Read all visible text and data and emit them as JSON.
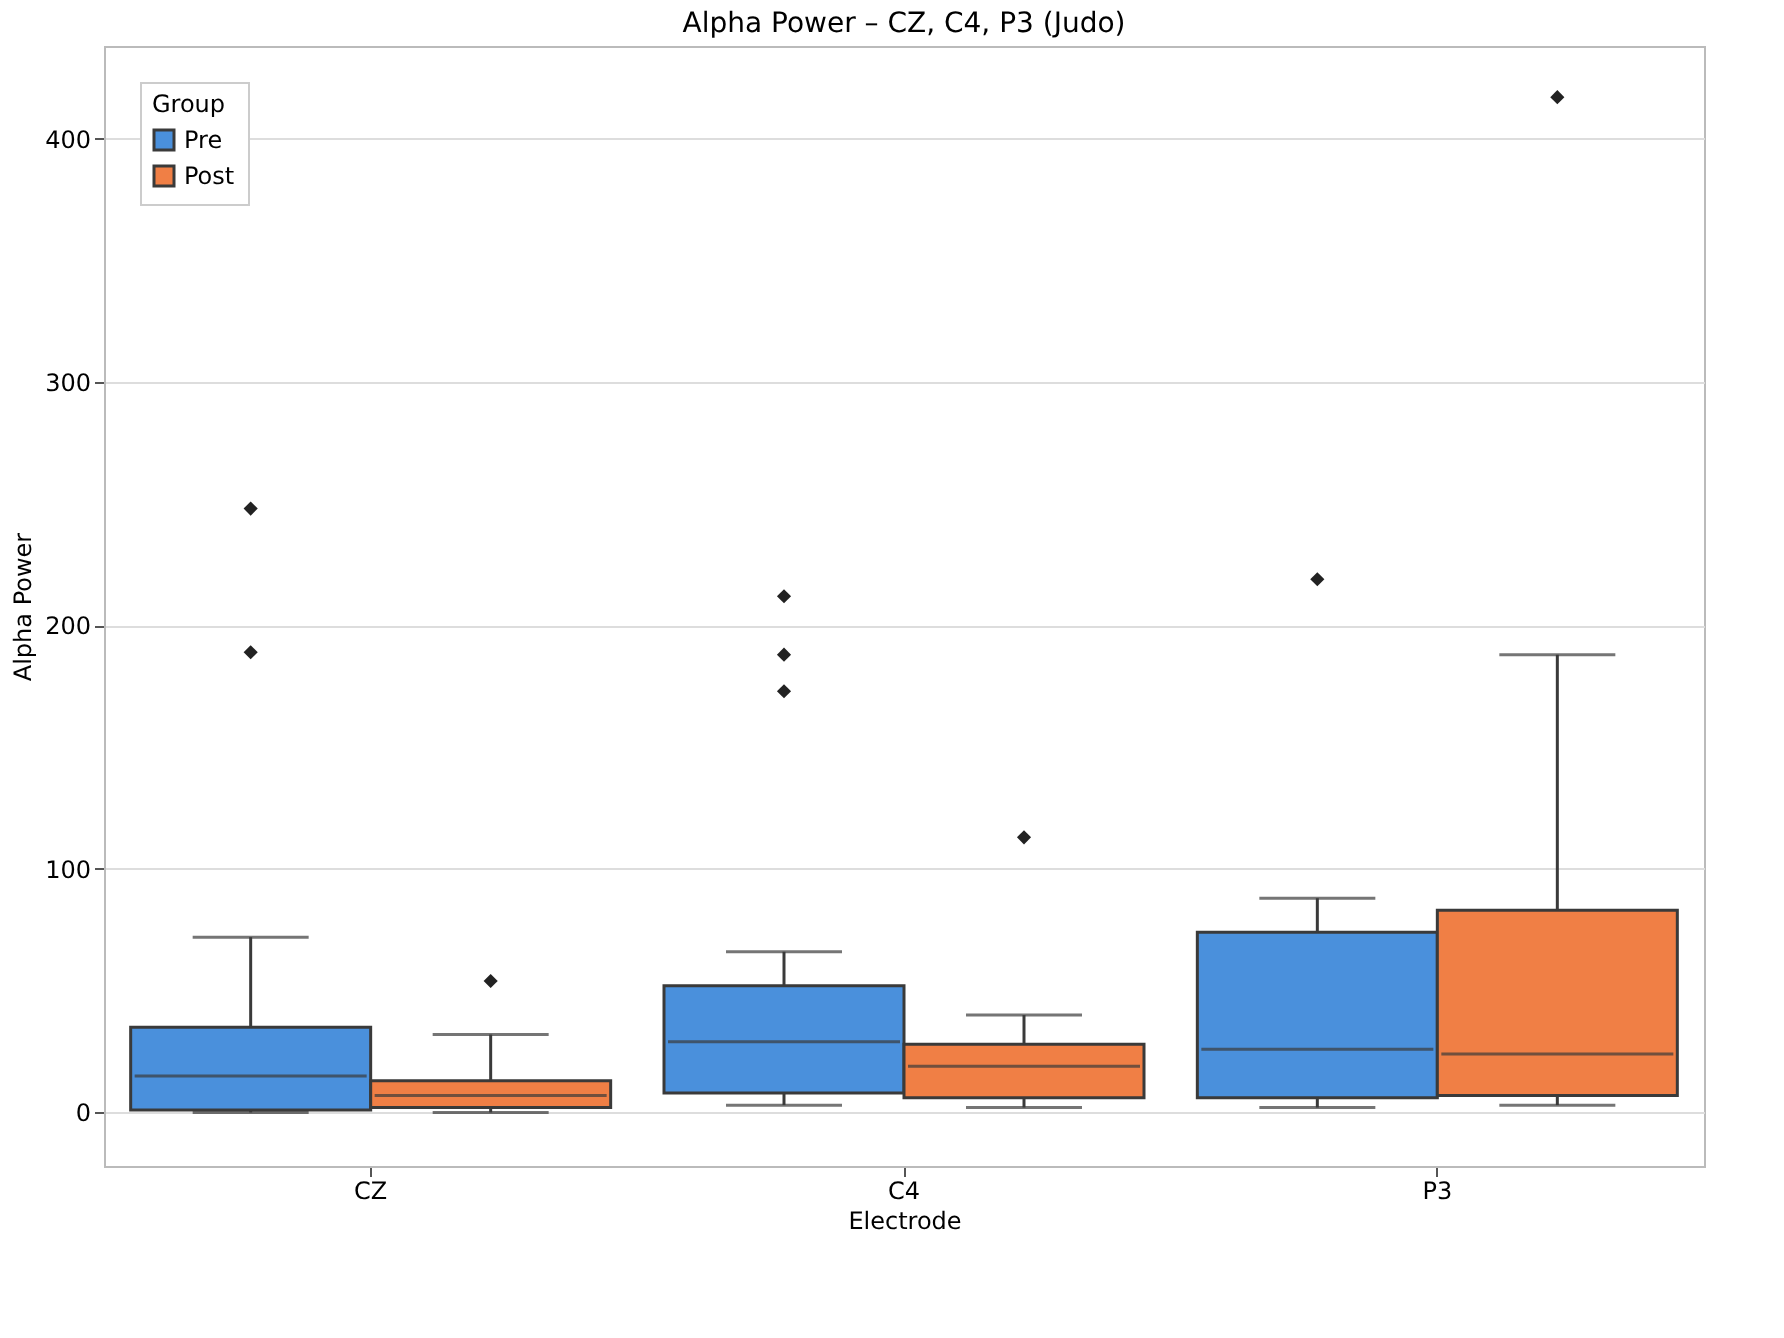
{
  "chart_data": {
    "type": "box",
    "title": "Alpha Power – CZ, C4, P3 (Judo)",
    "xlabel": "Electrode",
    "ylabel": "Alpha Power",
    "legend_title": "Group",
    "categories": [
      "CZ",
      "C4",
      "P3"
    ],
    "series": [
      {
        "name": "Pre",
        "color": "#4a90dc",
        "boxes": [
          {
            "low": 0,
            "q1": 1,
            "median": 15,
            "q3": 35,
            "high": 72,
            "outliers": [
              248,
              189
            ]
          },
          {
            "low": 3,
            "q1": 8,
            "median": 29,
            "q3": 52,
            "high": 66,
            "outliers": [
              212,
              188,
              173
            ]
          },
          {
            "low": 2,
            "q1": 6,
            "median": 26,
            "q3": 74,
            "high": 88,
            "outliers": [
              219
            ]
          }
        ]
      },
      {
        "name": "Post",
        "color": "#f07f45",
        "boxes": [
          {
            "low": 0,
            "q1": 2,
            "median": 7,
            "q3": 13,
            "high": 32,
            "outliers": [
              54
            ]
          },
          {
            "low": 2,
            "q1": 6,
            "median": 19,
            "q3": 28,
            "high": 40,
            "outliers": [
              113
            ]
          },
          {
            "low": 3,
            "q1": 7,
            "median": 24,
            "q3": 83,
            "high": 188,
            "outliers": [
              417
            ]
          }
        ]
      }
    ],
    "ylim": [
      -22,
      438
    ],
    "yticks": [
      0,
      100,
      200,
      300,
      400
    ],
    "grid": "y",
    "legend": "top left"
  }
}
